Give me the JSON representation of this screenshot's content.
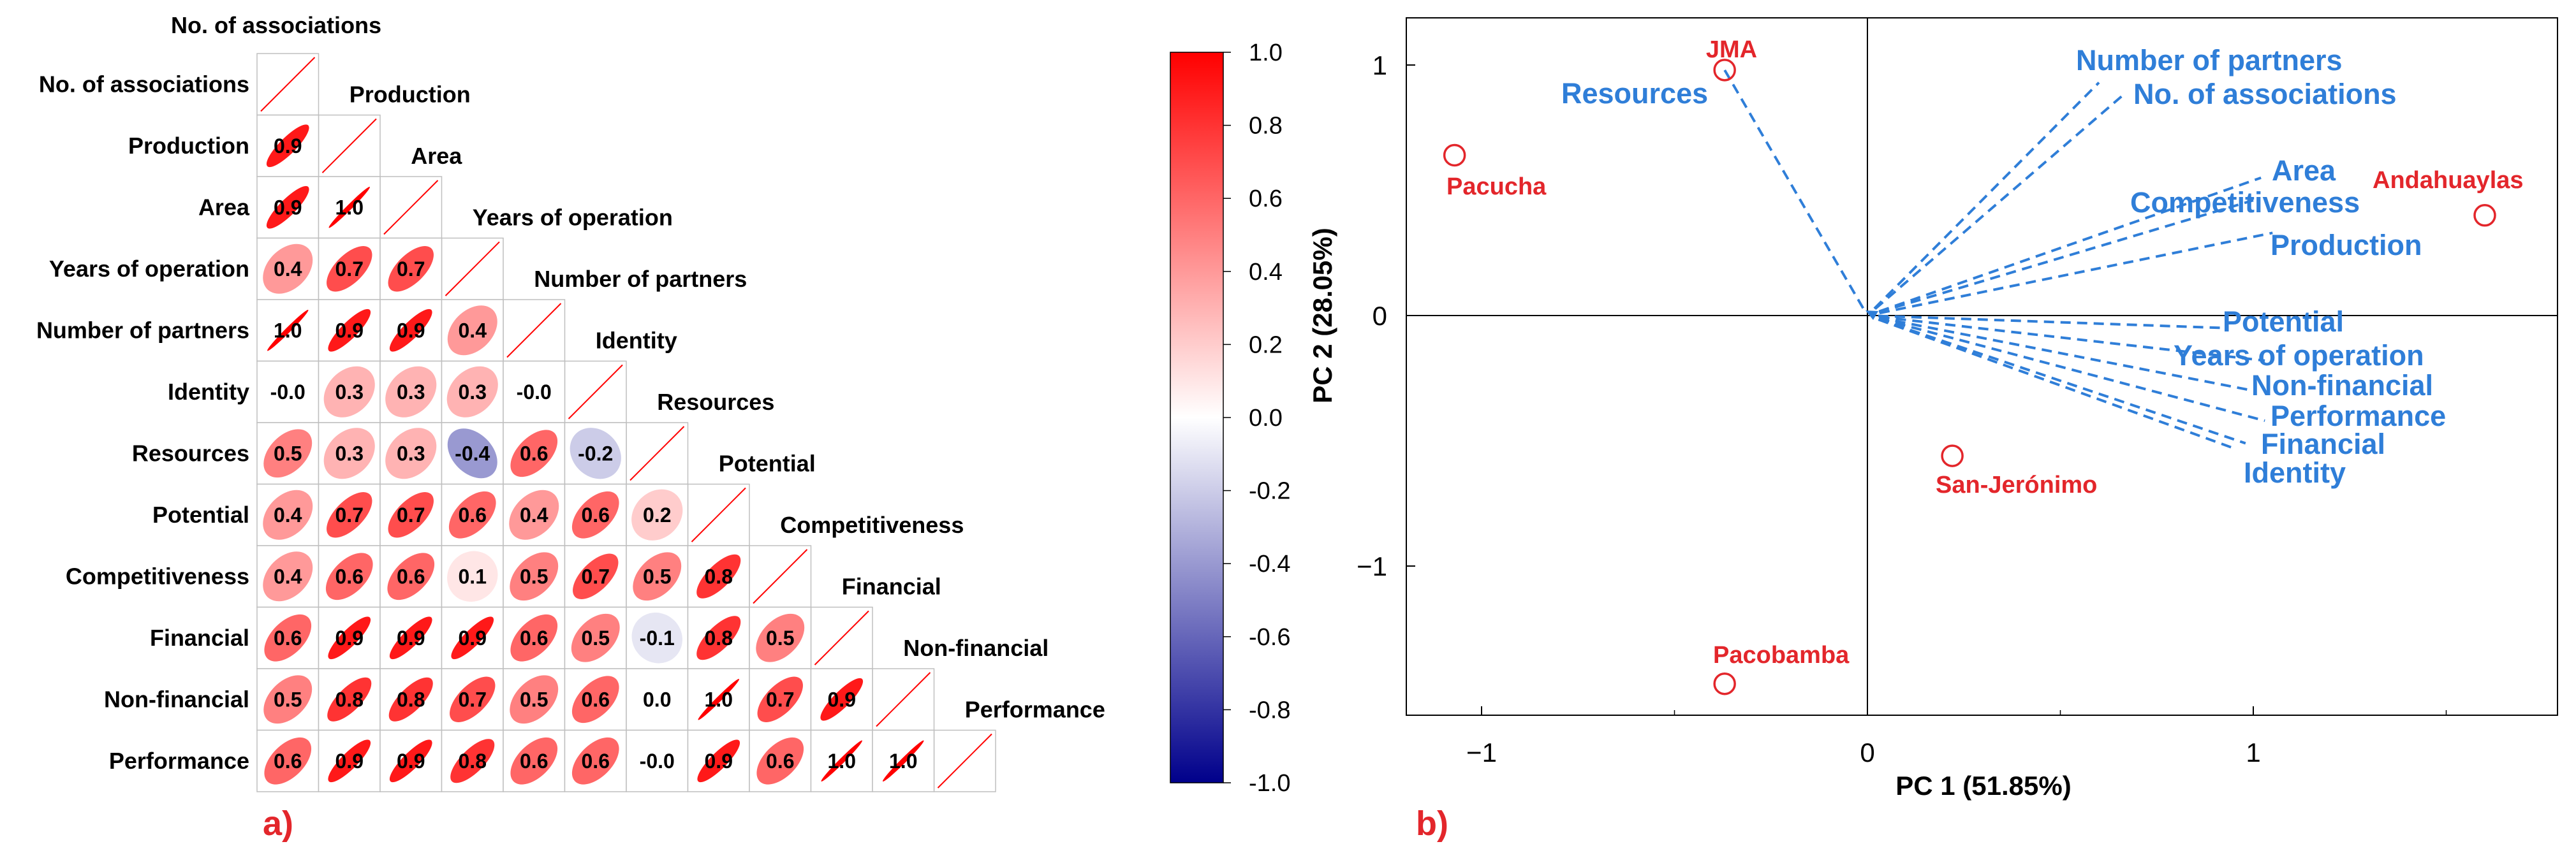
{
  "panel_a": {
    "label": "a)",
    "chart_data": {
      "type": "heatmap",
      "title": "",
      "variables": [
        "No. of associations",
        "Production",
        "Area",
        "Years of operation",
        "Number of partners",
        "Identity",
        "Resources",
        "Potential",
        "Competitiveness",
        "Financial",
        "Non-financial",
        "Performance"
      ],
      "lower_triangle": [
        [],
        [
          "0.9"
        ],
        [
          "0.9",
          "1.0"
        ],
        [
          "0.4",
          "0.7",
          "0.7"
        ],
        [
          "1.0",
          "0.9",
          "0.9",
          "0.4"
        ],
        [
          "-0.0",
          "0.3",
          "0.3",
          "0.3",
          "-0.0"
        ],
        [
          "0.5",
          "0.3",
          "0.3",
          "-0.4",
          "0.6",
          "-0.2"
        ],
        [
          "0.4",
          "0.7",
          "0.7",
          "0.6",
          "0.4",
          "0.6",
          "0.2"
        ],
        [
          "0.4",
          "0.6",
          "0.6",
          "0.1",
          "0.5",
          "0.7",
          "0.5",
          "0.8"
        ],
        [
          "0.6",
          "0.9",
          "0.9",
          "0.9",
          "0.6",
          "0.5",
          "-0.1",
          "0.8",
          "0.5"
        ],
        [
          "0.5",
          "0.8",
          "0.8",
          "0.7",
          "0.5",
          "0.6",
          "0.0",
          "1.0",
          "0.7",
          "0.9"
        ],
        [
          "0.6",
          "0.9",
          "0.9",
          "0.8",
          "0.6",
          "0.6",
          "-0.0",
          "0.9",
          "0.6",
          "1.0",
          "1.0"
        ]
      ],
      "colorbar": {
        "range": [
          -1.0,
          1.0
        ],
        "ticks": [
          "1.0",
          "0.8",
          "0.6",
          "0.4",
          "0.2",
          "0.0",
          "-0.2",
          "-0.4",
          "-0.6",
          "-0.8",
          "-1.0"
        ],
        "colors": {
          "high": "#ff0000",
          "mid": "#ffffff",
          "low": "#00008b"
        }
      }
    }
  },
  "panel_b": {
    "label": "b)",
    "chart_data": {
      "type": "scatter",
      "subtype": "biplot",
      "title": "",
      "xlabel": "PC 1 (51.85%)",
      "ylabel": "PC 2 (28.05%)",
      "xlim": [
        -1.2,
        1.8
      ],
      "ylim": [
        -1.6,
        1.2
      ],
      "x_ticks": [
        "−1",
        "0",
        "1"
      ],
      "y_ticks": [
        "1",
        "0",
        "−1"
      ],
      "observations": [
        {
          "name": "JMA",
          "x": -0.37,
          "y": 0.98
        },
        {
          "name": "Pacucha",
          "x": -1.07,
          "y": 0.64
        },
        {
          "name": "Andahuaylas",
          "x": 1.6,
          "y": 0.4
        },
        {
          "name": "San-Jerónimo",
          "x": 0.22,
          "y": -0.56
        },
        {
          "name": "Pacobamba",
          "x": -0.37,
          "y": -1.47
        }
      ],
      "loadings": [
        {
          "name": "Resources",
          "x": -0.37,
          "y": 0.98
        },
        {
          "name": "Number of partners",
          "x": 0.6,
          "y": 0.93
        },
        {
          "name": "No. of associations",
          "x": 0.67,
          "y": 0.89
        },
        {
          "name": "Area",
          "x": 1.02,
          "y": 0.55
        },
        {
          "name": "Competitiveness",
          "x": 1.0,
          "y": 0.46
        },
        {
          "name": "Production",
          "x": 1.05,
          "y": 0.33
        },
        {
          "name": "Potential",
          "x": 0.93,
          "y": -0.05
        },
        {
          "name": "Years of operation",
          "x": 1.03,
          "y": -0.18
        },
        {
          "name": "Non-financial",
          "x": 1.0,
          "y": -0.3
        },
        {
          "name": "Performance",
          "x": 1.03,
          "y": -0.42
        },
        {
          "name": "Financial",
          "x": 0.98,
          "y": -0.51
        },
        {
          "name": "Identity",
          "x": 0.95,
          "y": -0.53
        }
      ]
    }
  }
}
